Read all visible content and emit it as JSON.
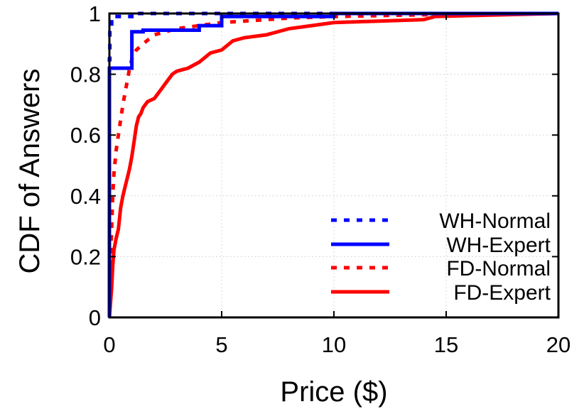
{
  "chart_data": {
    "type": "line",
    "title": "",
    "xlabel": "Price ($)",
    "ylabel": "CDF of Answers",
    "xlim": [
      0,
      20
    ],
    "ylim": [
      0,
      1
    ],
    "x_ticks": [
      0,
      5,
      10,
      15,
      20
    ],
    "y_ticks": [
      0,
      0.2,
      0.4,
      0.6,
      0.8,
      1
    ],
    "x_tick_labels": [
      "0",
      "5",
      "10",
      "15",
      "20"
    ],
    "y_tick_labels": [
      "0",
      "0.2",
      "0.4",
      "0.6",
      "0.8",
      "1"
    ],
    "grid": true,
    "legend_position": "bottom-right",
    "series": [
      {
        "name": "WH-Normal",
        "color": "#0000ff",
        "line_style": "dotted",
        "x": [
          0,
          0,
          0.02,
          0.02,
          0.1,
          0.1,
          1,
          1,
          5,
          5,
          20
        ],
        "y": [
          0,
          0.85,
          0.85,
          0.95,
          0.95,
          0.99,
          0.99,
          1,
          1,
          1,
          1
        ]
      },
      {
        "name": "WH-Expert",
        "color": "#0000ff",
        "line_style": "solid",
        "x": [
          0,
          0,
          0.05,
          0.05,
          1,
          1,
          1.5,
          1.5,
          4,
          4,
          5,
          5,
          10,
          10,
          20
        ],
        "y": [
          0,
          0.82,
          0.82,
          0.82,
          0.82,
          0.94,
          0.94,
          0.945,
          0.945,
          0.96,
          0.96,
          0.99,
          0.99,
          1,
          1
        ]
      },
      {
        "name": "FD-Normal",
        "color": "#ff0000",
        "line_style": "dotted",
        "x": [
          0,
          0.02,
          0.05,
          0.1,
          0.15,
          0.2,
          0.3,
          0.4,
          0.5,
          0.6,
          0.7,
          0.8,
          0.9,
          1.0,
          1.2,
          1.5,
          2.0,
          2.5,
          3.0,
          4.0,
          5.0,
          6.0,
          7.0,
          8.0,
          10.0,
          12.0,
          15.0,
          20.0
        ],
        "y": [
          0,
          0.1,
          0.2,
          0.3,
          0.4,
          0.47,
          0.55,
          0.6,
          0.65,
          0.7,
          0.74,
          0.78,
          0.82,
          0.85,
          0.88,
          0.9,
          0.93,
          0.94,
          0.95,
          0.96,
          0.97,
          0.975,
          0.98,
          0.985,
          0.99,
          0.993,
          0.997,
          1.0
        ]
      },
      {
        "name": "FD-Expert",
        "color": "#ff0000",
        "line_style": "solid",
        "x": [
          0,
          0.1,
          0.15,
          0.2,
          0.3,
          0.4,
          0.5,
          0.6,
          0.7,
          0.8,
          0.9,
          1.0,
          1.1,
          1.2,
          1.3,
          1.4,
          1.5,
          1.7,
          2.0,
          2.3,
          2.5,
          2.8,
          3.0,
          3.5,
          4.0,
          4.5,
          5.0,
          5.5,
          6.0,
          7.0,
          8.0,
          9.0,
          10.0,
          12.0,
          14.0,
          14.5,
          16.0,
          20.0
        ],
        "y": [
          0,
          0.1,
          0.17,
          0.22,
          0.26,
          0.29,
          0.36,
          0.4,
          0.43,
          0.46,
          0.49,
          0.53,
          0.58,
          0.63,
          0.66,
          0.67,
          0.69,
          0.71,
          0.72,
          0.75,
          0.77,
          0.8,
          0.81,
          0.82,
          0.84,
          0.87,
          0.88,
          0.91,
          0.92,
          0.93,
          0.95,
          0.96,
          0.97,
          0.975,
          0.98,
          0.99,
          0.993,
          1.0
        ]
      }
    ]
  }
}
